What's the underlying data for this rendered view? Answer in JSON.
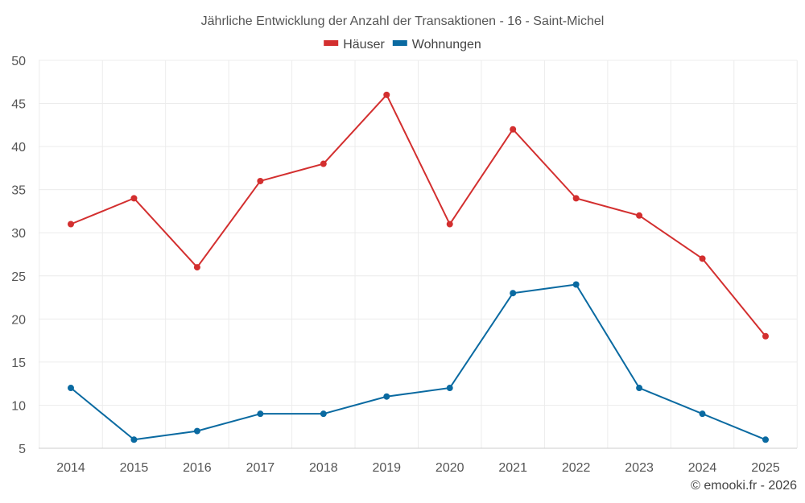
{
  "chart_data": {
    "type": "line",
    "title": "Jährliche Entwicklung der Anzahl der Transaktionen - 16 - Saint-Michel",
    "xlabel": "",
    "ylabel": "",
    "categories": [
      "2014",
      "2015",
      "2016",
      "2017",
      "2018",
      "2019",
      "2020",
      "2021",
      "2022",
      "2023",
      "2024",
      "2025"
    ],
    "y_ticks": [
      "5",
      "10",
      "15",
      "20",
      "25",
      "30",
      "35",
      "40",
      "45",
      "50"
    ],
    "ylim": [
      5,
      50
    ],
    "grid": true,
    "legend_position": "top-center",
    "series": [
      {
        "name": "Häuser",
        "color": "#d32f2f",
        "values": [
          31,
          34,
          26,
          36,
          38,
          46,
          31,
          42,
          34,
          32,
          27,
          18
        ]
      },
      {
        "name": "Wohnungen",
        "color": "#0a6aa1",
        "values": [
          12,
          6,
          7,
          9,
          9,
          11,
          12,
          23,
          24,
          12,
          9,
          6
        ]
      }
    ]
  },
  "credit": "© emooki.fr - 2026"
}
